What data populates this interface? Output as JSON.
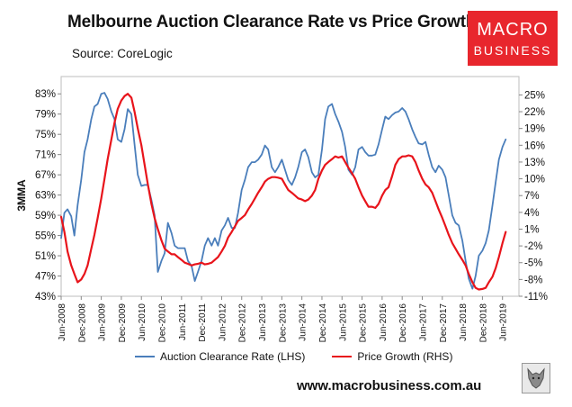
{
  "header": {
    "title": "Melbourne Auction Clearance Rate vs Price Growth",
    "source": "Source: CoreLogic"
  },
  "logo": {
    "line1": "MACRO",
    "line2": "BUSINESS"
  },
  "footer": {
    "url": "www.macrobusiness.com.au"
  },
  "chart_data": {
    "type": "line",
    "title": "Melbourne Auction Clearance Rate vs Price Growth",
    "ylabel": "3MMA",
    "ylim_left": [
      43,
      85
    ],
    "ylim_right": [
      -11,
      27
    ],
    "left_ticks": [
      "83%",
      "79%",
      "75%",
      "71%",
      "67%",
      "63%",
      "59%",
      "55%",
      "51%",
      "47%",
      "43%"
    ],
    "left_tick_values": [
      83,
      79,
      75,
      71,
      67,
      63,
      59,
      55,
      51,
      47,
      43
    ],
    "right_ticks": [
      "25%",
      "22%",
      "19%",
      "16%",
      "13%",
      "10%",
      "7%",
      "4%",
      "1%",
      "-2%",
      "-5%",
      "-8%",
      "-11%"
    ],
    "right_tick_values": [
      25,
      22,
      19,
      16,
      13,
      10,
      7,
      4,
      1,
      -2,
      -5,
      -8,
      -11
    ],
    "x_range": [
      2008.42,
      2019.83
    ],
    "x_ticks": [
      "Jun-2008",
      "Dec-2008",
      "Jun-2009",
      "Dec-2009",
      "Jun-2010",
      "Dec-2010",
      "Jun-2011",
      "Dec-2011",
      "Jun-2012",
      "Dec-2012",
      "Jun-2013",
      "Dec-2013",
      "Jun-2014",
      "Dec-2014",
      "Jun-2015",
      "Dec-2015",
      "Jun-2016",
      "Dec-2016",
      "Jun-2017",
      "Dec-2017",
      "Jun-2018",
      "Dec-2018",
      "Jun-2019"
    ],
    "x_tick_values": [
      2008.42,
      2008.92,
      2009.42,
      2009.92,
      2010.42,
      2010.92,
      2011.42,
      2011.92,
      2012.42,
      2012.92,
      2013.42,
      2013.92,
      2014.42,
      2014.92,
      2015.42,
      2015.92,
      2016.42,
      2016.92,
      2017.42,
      2017.92,
      2018.42,
      2018.92,
      2019.42
    ],
    "series": [
      {
        "name": "Auction Clearance Rate (LHS)",
        "axis": "left",
        "color": "#4a7ebb",
        "points": [
          [
            2008.42,
            54.5
          ],
          [
            2008.5,
            59.5
          ],
          [
            2008.58,
            60.2
          ],
          [
            2008.67,
            58.8
          ],
          [
            2008.75,
            55.0
          ],
          [
            2008.83,
            61.0
          ],
          [
            2008.92,
            66.0
          ],
          [
            2009.0,
            71.5
          ],
          [
            2009.08,
            74.0
          ],
          [
            2009.17,
            78.0
          ],
          [
            2009.25,
            80.5
          ],
          [
            2009.33,
            81.0
          ],
          [
            2009.42,
            83.0
          ],
          [
            2009.5,
            83.2
          ],
          [
            2009.58,
            82.0
          ],
          [
            2009.67,
            79.5
          ],
          [
            2009.75,
            78.0
          ],
          [
            2009.83,
            74.0
          ],
          [
            2009.92,
            73.5
          ],
          [
            2010.0,
            76.0
          ],
          [
            2010.08,
            80.0
          ],
          [
            2010.17,
            79.0
          ],
          [
            2010.25,
            73.0
          ],
          [
            2010.33,
            67.0
          ],
          [
            2010.42,
            64.8
          ],
          [
            2010.5,
            65.0
          ],
          [
            2010.58,
            65.0
          ],
          [
            2010.67,
            62.0
          ],
          [
            2010.75,
            59.0
          ],
          [
            2010.83,
            47.8
          ],
          [
            2010.92,
            50.0
          ],
          [
            2011.0,
            51.5
          ],
          [
            2011.08,
            57.5
          ],
          [
            2011.17,
            55.5
          ],
          [
            2011.25,
            53.0
          ],
          [
            2011.33,
            52.5
          ],
          [
            2011.42,
            52.5
          ],
          [
            2011.5,
            52.5
          ],
          [
            2011.58,
            50.0
          ],
          [
            2011.67,
            49.0
          ],
          [
            2011.75,
            46.0
          ],
          [
            2011.83,
            47.8
          ],
          [
            2011.92,
            50.0
          ],
          [
            2012.0,
            53.0
          ],
          [
            2012.08,
            54.5
          ],
          [
            2012.17,
            53.0
          ],
          [
            2012.25,
            54.5
          ],
          [
            2012.33,
            53.0
          ],
          [
            2012.42,
            56.0
          ],
          [
            2012.5,
            57.0
          ],
          [
            2012.58,
            58.5
          ],
          [
            2012.67,
            56.5
          ],
          [
            2012.75,
            56.5
          ],
          [
            2012.83,
            59.5
          ],
          [
            2012.92,
            64.0
          ],
          [
            2013.0,
            66.0
          ],
          [
            2013.08,
            68.5
          ],
          [
            2013.17,
            69.5
          ],
          [
            2013.25,
            69.5
          ],
          [
            2013.33,
            70.0
          ],
          [
            2013.42,
            71.0
          ],
          [
            2013.5,
            72.8
          ],
          [
            2013.58,
            72.0
          ],
          [
            2013.67,
            68.5
          ],
          [
            2013.75,
            67.5
          ],
          [
            2013.83,
            68.5
          ],
          [
            2013.92,
            70.0
          ],
          [
            2014.0,
            68.0
          ],
          [
            2014.08,
            66.0
          ],
          [
            2014.17,
            65.0
          ],
          [
            2014.25,
            66.5
          ],
          [
            2014.33,
            68.5
          ],
          [
            2014.42,
            71.5
          ],
          [
            2014.5,
            72.0
          ],
          [
            2014.58,
            70.5
          ],
          [
            2014.67,
            67.5
          ],
          [
            2014.75,
            66.5
          ],
          [
            2014.83,
            67.0
          ],
          [
            2014.92,
            72.0
          ],
          [
            2015.0,
            78.0
          ],
          [
            2015.08,
            80.5
          ],
          [
            2015.17,
            81.0
          ],
          [
            2015.25,
            79.0
          ],
          [
            2015.33,
            77.5
          ],
          [
            2015.42,
            75.5
          ],
          [
            2015.5,
            72.5
          ],
          [
            2015.58,
            68.0
          ],
          [
            2015.67,
            67.0
          ],
          [
            2015.75,
            68.5
          ],
          [
            2015.83,
            72.0
          ],
          [
            2015.92,
            72.5
          ],
          [
            2016.0,
            71.5
          ],
          [
            2016.08,
            70.8
          ],
          [
            2016.17,
            70.8
          ],
          [
            2016.25,
            71.0
          ],
          [
            2016.33,
            73.0
          ],
          [
            2016.42,
            76.0
          ],
          [
            2016.5,
            78.5
          ],
          [
            2016.58,
            78.0
          ],
          [
            2016.67,
            78.8
          ],
          [
            2016.75,
            79.3
          ],
          [
            2016.83,
            79.5
          ],
          [
            2016.92,
            80.2
          ],
          [
            2017.0,
            79.5
          ],
          [
            2017.08,
            78.0
          ],
          [
            2017.17,
            76.0
          ],
          [
            2017.25,
            74.5
          ],
          [
            2017.33,
            73.2
          ],
          [
            2017.42,
            73.0
          ],
          [
            2017.5,
            73.5
          ],
          [
            2017.58,
            71.0
          ],
          [
            2017.67,
            68.5
          ],
          [
            2017.75,
            67.5
          ],
          [
            2017.83,
            68.8
          ],
          [
            2017.92,
            68.0
          ],
          [
            2018.0,
            66.5
          ],
          [
            2018.08,
            63.0
          ],
          [
            2018.17,
            59.0
          ],
          [
            2018.25,
            57.5
          ],
          [
            2018.33,
            57.0
          ],
          [
            2018.42,
            54.0
          ],
          [
            2018.5,
            50.0
          ],
          [
            2018.58,
            46.5
          ],
          [
            2018.67,
            44.5
          ],
          [
            2018.75,
            47.0
          ],
          [
            2018.83,
            51.0
          ],
          [
            2018.92,
            52.0
          ],
          [
            2019.0,
            53.5
          ],
          [
            2019.08,
            56.0
          ],
          [
            2019.17,
            61.0
          ],
          [
            2019.25,
            65.5
          ],
          [
            2019.33,
            70.0
          ],
          [
            2019.42,
            72.5
          ],
          [
            2019.5,
            74.0
          ]
        ]
      },
      {
        "name": "Price Growth (RHS)",
        "axis": "right",
        "color": "#e8141b",
        "points": [
          [
            2008.42,
            3.2
          ],
          [
            2008.5,
            0.5
          ],
          [
            2008.58,
            -3.0
          ],
          [
            2008.67,
            -5.5
          ],
          [
            2008.75,
            -7.0
          ],
          [
            2008.83,
            -8.5
          ],
          [
            2008.92,
            -8.0
          ],
          [
            2009.0,
            -7.0
          ],
          [
            2009.08,
            -5.5
          ],
          [
            2009.17,
            -2.5
          ],
          [
            2009.25,
            0.0
          ],
          [
            2009.33,
            3.0
          ],
          [
            2009.42,
            6.5
          ],
          [
            2009.5,
            10.0
          ],
          [
            2009.58,
            13.5
          ],
          [
            2009.67,
            17.0
          ],
          [
            2009.75,
            20.0
          ],
          [
            2009.83,
            22.5
          ],
          [
            2009.92,
            24.0
          ],
          [
            2010.0,
            24.8
          ],
          [
            2010.08,
            25.2
          ],
          [
            2010.17,
            24.5
          ],
          [
            2010.25,
            22.0
          ],
          [
            2010.33,
            19.0
          ],
          [
            2010.42,
            16.0
          ],
          [
            2010.5,
            12.5
          ],
          [
            2010.58,
            9.0
          ],
          [
            2010.67,
            5.5
          ],
          [
            2010.75,
            3.0
          ],
          [
            2010.83,
            1.0
          ],
          [
            2010.92,
            -1.0
          ],
          [
            2011.0,
            -2.5
          ],
          [
            2011.08,
            -3.0
          ],
          [
            2011.17,
            -3.5
          ],
          [
            2011.25,
            -3.5
          ],
          [
            2011.33,
            -4.0
          ],
          [
            2011.42,
            -4.5
          ],
          [
            2011.5,
            -5.0
          ],
          [
            2011.58,
            -5.2
          ],
          [
            2011.67,
            -5.5
          ],
          [
            2011.75,
            -5.3
          ],
          [
            2011.83,
            -5.2
          ],
          [
            2011.92,
            -5.0
          ],
          [
            2012.0,
            -5.3
          ],
          [
            2012.08,
            -5.2
          ],
          [
            2012.17,
            -5.0
          ],
          [
            2012.25,
            -4.5
          ],
          [
            2012.33,
            -4.0
          ],
          [
            2012.42,
            -3.0
          ],
          [
            2012.5,
            -2.0
          ],
          [
            2012.58,
            -0.5
          ],
          [
            2012.67,
            0.5
          ],
          [
            2012.75,
            1.5
          ],
          [
            2012.83,
            2.5
          ],
          [
            2012.92,
            3.0
          ],
          [
            2013.0,
            3.5
          ],
          [
            2013.08,
            4.5
          ],
          [
            2013.17,
            5.5
          ],
          [
            2013.25,
            6.5
          ],
          [
            2013.33,
            7.5
          ],
          [
            2013.42,
            8.5
          ],
          [
            2013.5,
            9.5
          ],
          [
            2013.58,
            10.0
          ],
          [
            2013.67,
            10.3
          ],
          [
            2013.75,
            10.3
          ],
          [
            2013.83,
            10.2
          ],
          [
            2013.92,
            10.0
          ],
          [
            2014.0,
            9.0
          ],
          [
            2014.08,
            8.0
          ],
          [
            2014.17,
            7.5
          ],
          [
            2014.25,
            7.0
          ],
          [
            2014.33,
            6.5
          ],
          [
            2014.42,
            6.3
          ],
          [
            2014.5,
            6.0
          ],
          [
            2014.58,
            6.3
          ],
          [
            2014.67,
            7.0
          ],
          [
            2014.75,
            8.0
          ],
          [
            2014.83,
            10.0
          ],
          [
            2014.92,
            11.5
          ],
          [
            2015.0,
            12.5
          ],
          [
            2015.08,
            13.0
          ],
          [
            2015.17,
            13.5
          ],
          [
            2015.25,
            14.0
          ],
          [
            2015.33,
            13.8
          ],
          [
            2015.42,
            14.0
          ],
          [
            2015.5,
            13.0
          ],
          [
            2015.58,
            12.0
          ],
          [
            2015.67,
            11.0
          ],
          [
            2015.75,
            10.0
          ],
          [
            2015.83,
            8.5
          ],
          [
            2015.92,
            7.0
          ],
          [
            2016.0,
            6.0
          ],
          [
            2016.08,
            5.0
          ],
          [
            2016.17,
            5.0
          ],
          [
            2016.25,
            4.8
          ],
          [
            2016.33,
            5.5
          ],
          [
            2016.42,
            7.0
          ],
          [
            2016.5,
            8.0
          ],
          [
            2016.58,
            8.5
          ],
          [
            2016.67,
            10.5
          ],
          [
            2016.75,
            12.5
          ],
          [
            2016.83,
            13.5
          ],
          [
            2016.92,
            14.0
          ],
          [
            2017.0,
            14.0
          ],
          [
            2017.08,
            14.2
          ],
          [
            2017.17,
            14.0
          ],
          [
            2017.25,
            13.0
          ],
          [
            2017.33,
            11.5
          ],
          [
            2017.42,
            10.0
          ],
          [
            2017.5,
            9.0
          ],
          [
            2017.58,
            8.5
          ],
          [
            2017.67,
            7.5
          ],
          [
            2017.75,
            6.0
          ],
          [
            2017.83,
            4.5
          ],
          [
            2017.92,
            3.0
          ],
          [
            2018.0,
            1.5
          ],
          [
            2018.08,
            0.0
          ],
          [
            2018.17,
            -1.5
          ],
          [
            2018.25,
            -2.5
          ],
          [
            2018.33,
            -3.5
          ],
          [
            2018.42,
            -4.5
          ],
          [
            2018.5,
            -5.5
          ],
          [
            2018.58,
            -7.0
          ],
          [
            2018.67,
            -8.5
          ],
          [
            2018.75,
            -9.5
          ],
          [
            2018.83,
            -9.8
          ],
          [
            2018.92,
            -9.7
          ],
          [
            2019.0,
            -9.5
          ],
          [
            2019.08,
            -8.5
          ],
          [
            2019.17,
            -7.5
          ],
          [
            2019.25,
            -6.0
          ],
          [
            2019.33,
            -4.0
          ],
          [
            2019.42,
            -1.5
          ],
          [
            2019.5,
            0.5
          ]
        ]
      }
    ]
  }
}
